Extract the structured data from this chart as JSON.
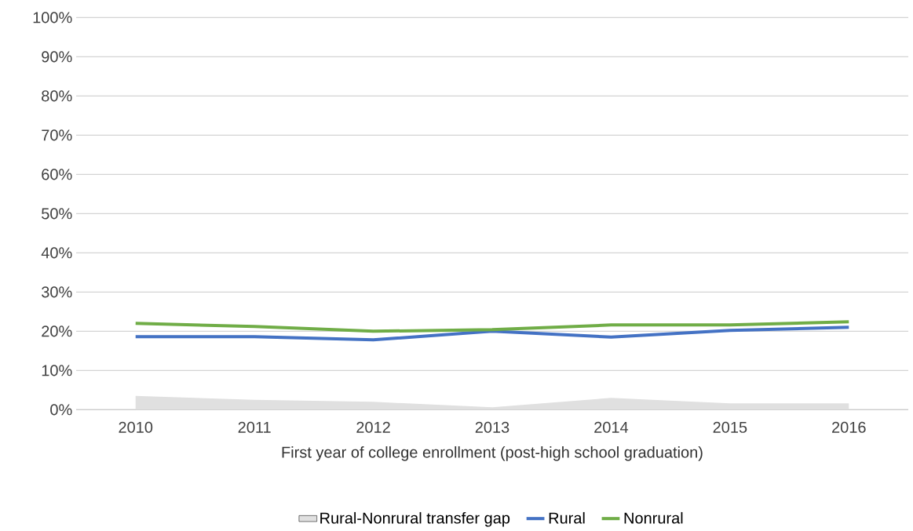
{
  "chart_data": {
    "type": "line",
    "xlabel": "First year of college enrollment (post-high school graduation)",
    "categories": [
      "2010",
      "2011",
      "2012",
      "2013",
      "2014",
      "2015",
      "2016"
    ],
    "series": [
      {
        "name": "Rural-Nonrural transfer gap",
        "type": "area",
        "color": "#e0e0e0",
        "values": [
          3.5,
          2.5,
          2.0,
          0.6,
          3.0,
          1.6,
          1.6
        ]
      },
      {
        "name": "Rural",
        "type": "line",
        "color": "#4472c4",
        "values": [
          18.6,
          18.6,
          17.8,
          20.0,
          18.5,
          20.2,
          21.0
        ]
      },
      {
        "name": "Nonrural",
        "type": "line",
        "color": "#70ad47",
        "values": [
          22.0,
          21.2,
          20.0,
          20.4,
          21.6,
          21.6,
          22.4
        ]
      }
    ],
    "ylim": [
      0,
      100
    ],
    "yticks": [
      {
        "value": 0,
        "label": "0%"
      },
      {
        "value": 10,
        "label": "10%"
      },
      {
        "value": 20,
        "label": "20%"
      },
      {
        "value": 30,
        "label": "30%"
      },
      {
        "value": 40,
        "label": "40%"
      },
      {
        "value": 50,
        "label": "50%"
      },
      {
        "value": 60,
        "label": "60%"
      },
      {
        "value": 70,
        "label": "70%"
      },
      {
        "value": 80,
        "label": "80%"
      },
      {
        "value": 90,
        "label": "90%"
      },
      {
        "value": 100,
        "label": "100%"
      }
    ],
    "grid": "y",
    "legend": "bottom"
  }
}
